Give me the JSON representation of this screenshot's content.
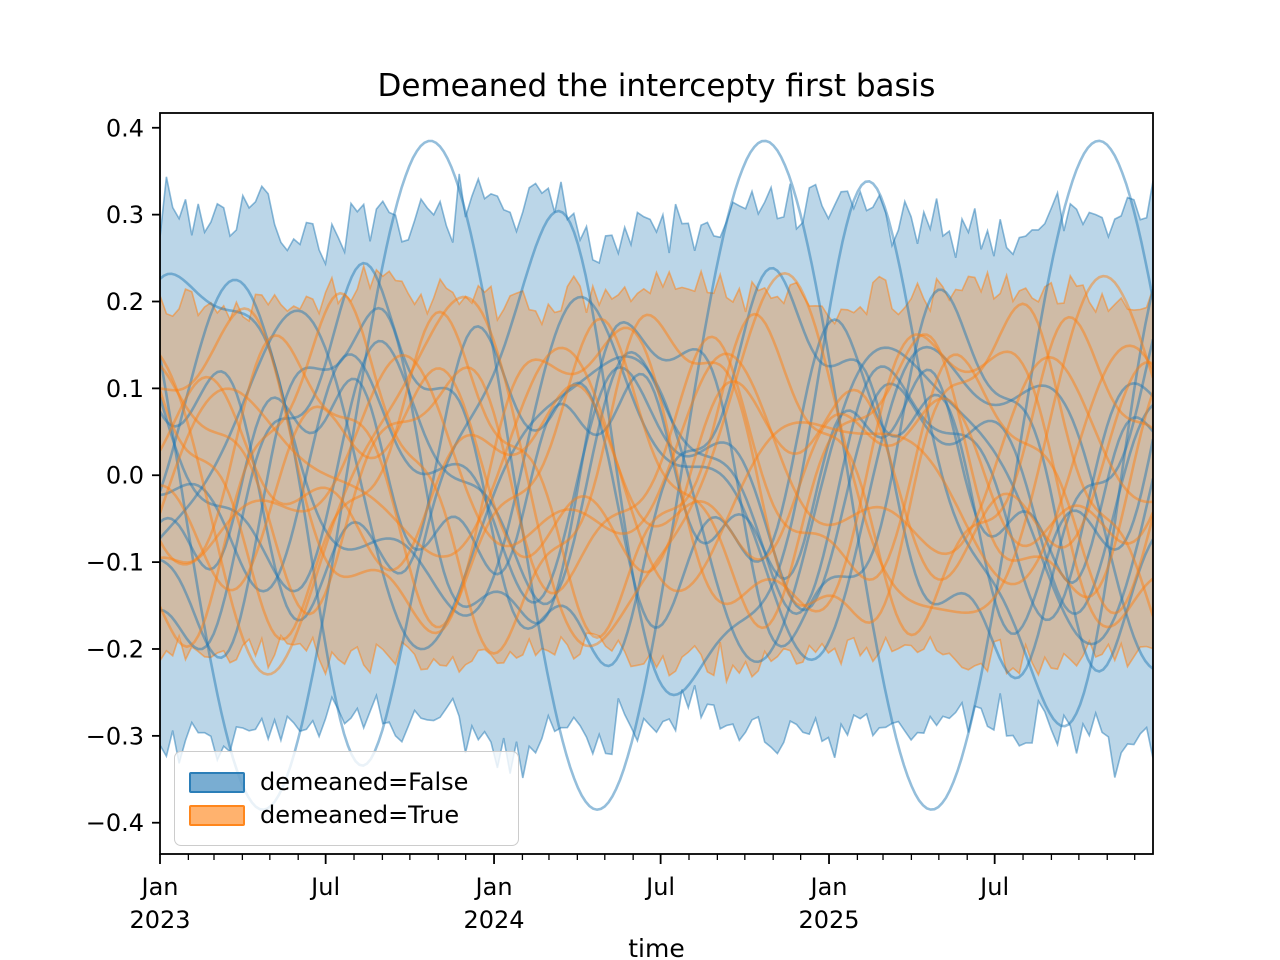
{
  "chart_data": {
    "type": "line",
    "title": "Demeaned the intercepty first basis",
    "xlabel": "time",
    "ylabel": "",
    "ylim": [
      -0.436,
      0.417
    ],
    "x_start_date": "2023-01-01",
    "x_end_day": 1085,
    "grid": false,
    "legend_position": "lower left",
    "legend": [
      {
        "label": "demeaned=False",
        "color": "#1f77b4"
      },
      {
        "label": "demeaned=True",
        "color": "#ff7f0e"
      }
    ],
    "y_ticks": [
      {
        "value": 0.4,
        "label": "0.4"
      },
      {
        "value": 0.3,
        "label": "0.3"
      },
      {
        "value": 0.2,
        "label": "0.2"
      },
      {
        "value": 0.1,
        "label": "0.1"
      },
      {
        "value": 0.0,
        "label": "0.0"
      },
      {
        "value": -0.1,
        "label": "−0.1"
      },
      {
        "value": -0.2,
        "label": "−0.2"
      },
      {
        "value": -0.3,
        "label": "−0.3"
      },
      {
        "value": -0.4,
        "label": "−0.4"
      }
    ],
    "x_major_ticks": [
      {
        "day": 0,
        "label": "Jan",
        "year": "2023"
      },
      {
        "day": 181,
        "label": "Jul",
        "year": ""
      },
      {
        "day": 365,
        "label": "Jan",
        "year": "2024"
      },
      {
        "day": 547,
        "label": "Jul",
        "year": ""
      },
      {
        "day": 731,
        "label": "Jan",
        "year": "2025"
      },
      {
        "day": 912,
        "label": "Jul",
        "year": ""
      }
    ],
    "month_lengths_days": [
      31,
      28,
      31,
      30,
      31,
      30,
      31,
      31,
      30,
      31,
      30,
      31,
      31,
      29,
      31,
      30,
      31,
      30,
      31,
      31,
      30,
      31,
      30,
      31,
      31,
      28,
      31,
      30,
      31,
      30,
      31,
      31,
      30,
      31,
      30,
      31
    ],
    "bands": [
      {
        "series": "demeaned=False",
        "color": "#1f77b4",
        "fill_alpha": 0.3,
        "edge_alpha": 0.5,
        "upper_mean": 0.293,
        "lower_mean": -0.293,
        "jitter": 0.026,
        "slow_amp": 0.016,
        "points": 157,
        "seed": 7
      },
      {
        "series": "demeaned=True",
        "color": "#ff7f0e",
        "fill_alpha": 0.3,
        "edge_alpha": 0.5,
        "upper_mean": 0.207,
        "lower_mean": -0.207,
        "jitter": 0.015,
        "slow_amp": 0.009,
        "points": 157,
        "seed": 13
      }
    ],
    "trajectories": {
      "duration_years": 2.97,
      "line_alpha": 0.48,
      "line_width": 2.6,
      "blue_series": "demeaned=False",
      "orange_series": "demeaned=True",
      "blue": [
        [
          0.385,
          1.0,
          -0.558,
          0.0,
          0.0,
          0.0
        ],
        [
          0.27,
          1.0,
          0.12,
          0.07,
          2.3,
          0.4
        ],
        [
          0.185,
          1.1,
          0.62,
          0.05,
          3.1,
          0.1
        ],
        [
          0.155,
          0.9,
          0.05,
          0.07,
          2.0,
          0.8
        ],
        [
          0.12,
          1.3,
          0.33,
          0.05,
          2.7,
          0.55
        ],
        [
          0.2,
          0.8,
          0.75,
          0.045,
          3.3,
          0.25
        ],
        [
          0.1,
          1.2,
          0.48,
          0.06,
          2.5,
          0.9
        ],
        [
          0.165,
          1.05,
          0.88,
          0.05,
          1.9,
          0.35
        ],
        [
          0.13,
          0.95,
          0.25,
          0.07,
          2.8,
          0.65
        ],
        [
          0.095,
          1.15,
          0.7,
          0.045,
          3.5,
          0.15
        ]
      ],
      "orange": [
        [
          0.195,
          1.0,
          0.4,
          0.04,
          2.2,
          0.1
        ],
        [
          0.17,
          0.9,
          0.1,
          0.05,
          2.6,
          0.5
        ],
        [
          0.14,
          1.1,
          0.8,
          0.04,
          3.0,
          0.3
        ],
        [
          0.09,
          1.0,
          0.55,
          0.05,
          2.1,
          0.7
        ],
        [
          0.12,
          1.25,
          0.2,
          0.04,
          2.9,
          0.45
        ],
        [
          0.085,
          0.85,
          0.65,
          0.06,
          2.4,
          0.2
        ],
        [
          0.15,
          1.05,
          0.35,
          0.04,
          3.2,
          0.6
        ],
        [
          0.1,
          1.15,
          0.9,
          0.05,
          1.8,
          0.05
        ],
        [
          0.075,
          0.95,
          0.15,
          0.04,
          2.7,
          0.85
        ],
        [
          0.175,
          1.0,
          0.72,
          0.035,
          3.4,
          0.4
        ]
      ]
    }
  }
}
